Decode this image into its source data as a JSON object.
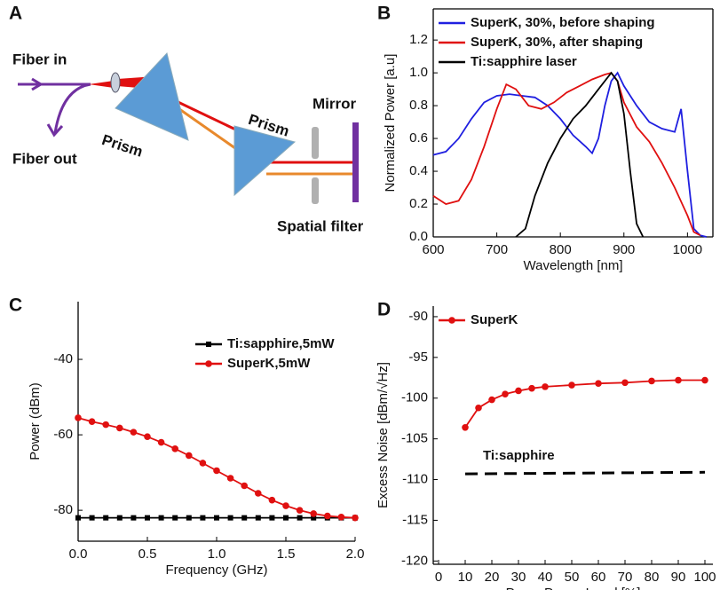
{
  "diagram": {
    "label": "A",
    "fiber_in": "Fiber in",
    "fiber_out": "Fiber out",
    "prism_1": "Prism",
    "prism_2": "Prism",
    "mirror": "Mirror",
    "spatial_filter": "Spatial filter"
  },
  "chart_data": [
    {
      "type": "line",
      "panel": "B",
      "x_label": "Wavelength [nm]",
      "y_label": "Normalized Power [a.u]",
      "xlim": [
        600,
        1040
      ],
      "xticks": [
        600,
        700,
        800,
        900,
        1000
      ],
      "ylim": [
        0,
        1.39
      ],
      "yticks": [
        {
          "value": 0,
          "label": "0.0"
        },
        0.2,
        0.4,
        0.6,
        0.8,
        {
          "value": 1,
          "label": "1.0"
        },
        1.2
      ],
      "frame": "box",
      "legend": "upper left",
      "series": [
        {
          "name": "SuperK, 30%, before shaping",
          "color": "#1f1fe0",
          "x": [
            600,
            620,
            640,
            660,
            680,
            700,
            720,
            740,
            760,
            780,
            800,
            820,
            840,
            850,
            860,
            870,
            880,
            890,
            900,
            920,
            940,
            960,
            980,
            990,
            1000,
            1010,
            1020,
            1030
          ],
          "values": [
            0.5,
            0.52,
            0.6,
            0.72,
            0.82,
            0.86,
            0.87,
            0.86,
            0.85,
            0.8,
            0.72,
            0.62,
            0.55,
            0.51,
            0.6,
            0.8,
            0.95,
            1.0,
            0.92,
            0.8,
            0.7,
            0.66,
            0.64,
            0.78,
            0.4,
            0.05,
            0.01,
            0
          ]
        },
        {
          "name": "SuperK, 30%, after shaping",
          "color": "#e01010",
          "x": [
            600,
            620,
            640,
            660,
            680,
            700,
            715,
            730,
            750,
            770,
            790,
            810,
            830,
            850,
            870,
            880,
            890,
            900,
            920,
            940,
            960,
            980,
            1000,
            1010,
            1020
          ],
          "values": [
            0.25,
            0.2,
            0.22,
            0.35,
            0.55,
            0.78,
            0.93,
            0.9,
            0.8,
            0.78,
            0.82,
            0.88,
            0.92,
            0.96,
            0.99,
            1.0,
            0.95,
            0.82,
            0.67,
            0.58,
            0.45,
            0.3,
            0.13,
            0.03,
            0.01
          ]
        },
        {
          "name": "Ti:sapphire laser",
          "color": "#000000",
          "x": [
            730,
            745,
            760,
            780,
            800,
            820,
            840,
            860,
            880,
            890,
            900,
            910,
            920,
            930
          ],
          "values": [
            0,
            0.05,
            0.25,
            0.45,
            0.6,
            0.72,
            0.8,
            0.9,
            1.0,
            0.95,
            0.75,
            0.4,
            0.08,
            0
          ]
        }
      ]
    },
    {
      "type": "line",
      "panel": "C",
      "x_label": "Frequency (GHz)",
      "y_label": "Power (dBm)",
      "xlim": [
        0,
        2
      ],
      "xticks": [
        {
          "value": 0,
          "label": "0.0"
        },
        0.5,
        {
          "value": 1,
          "label": "1.0"
        },
        1.5,
        {
          "value": 2,
          "label": "2.0"
        }
      ],
      "ylim": [
        -88.2,
        -24.7
      ],
      "yticks": [
        -40,
        -60,
        -80
      ],
      "frame": "axes",
      "legend": "upper right",
      "series": [
        {
          "name": "Ti:sapphire,5mW",
          "color": "#000000",
          "marker": "square",
          "x": [
            0,
            0.1,
            0.2,
            0.3,
            0.4,
            0.5,
            0.6,
            0.7,
            0.8,
            0.9,
            1.0,
            1.1,
            1.2,
            1.3,
            1.4,
            1.5,
            1.6,
            1.7,
            1.8,
            1.9,
            2.0
          ],
          "values": [
            -82,
            -82,
            -82,
            -82,
            -82,
            -82,
            -82,
            -82,
            -82,
            -82,
            -82,
            -82,
            -82,
            -82,
            -82,
            -82,
            -82,
            -82,
            -82,
            -82,
            -82
          ]
        },
        {
          "name": "SuperK,5mW",
          "color": "#e01010",
          "marker": "circle",
          "x": [
            0,
            0.1,
            0.2,
            0.3,
            0.4,
            0.5,
            0.6,
            0.7,
            0.8,
            0.9,
            1.0,
            1.1,
            1.2,
            1.3,
            1.4,
            1.5,
            1.6,
            1.7,
            1.8,
            1.9,
            2.0
          ],
          "values": [
            -55.5,
            -56.5,
            -57.3,
            -58.2,
            -59.3,
            -60.5,
            -62,
            -63.7,
            -65.5,
            -67.5,
            -69.5,
            -71.5,
            -73.5,
            -75.5,
            -77.3,
            -78.8,
            -80,
            -80.9,
            -81.5,
            -81.8,
            -82
          ]
        }
      ]
    },
    {
      "type": "line",
      "panel": "D",
      "x_label": "Pump Power Level [%]",
      "y_label": "Excess Noise [dBm/√Hz]",
      "xlim": [
        -2,
        103
      ],
      "xticks": [
        0,
        10,
        20,
        30,
        40,
        50,
        60,
        70,
        80,
        90,
        100
      ],
      "ylim": [
        -120.4,
        -88.7
      ],
      "yticks": [
        -90,
        -95,
        -100,
        -105,
        -110,
        -115,
        -120
      ],
      "frame": "axes",
      "legend": "upper left",
      "series": [
        {
          "name": "SuperK",
          "color": "#e01010",
          "marker": "circle",
          "x": [
            10,
            15,
            20,
            25,
            30,
            35,
            40,
            50,
            60,
            70,
            80,
            90,
            100
          ],
          "values": [
            -103.6,
            -101.2,
            -100.2,
            -99.5,
            -99.1,
            -98.8,
            -98.6,
            -98.4,
            -98.2,
            -98.1,
            -97.9,
            -97.8,
            -97.8
          ]
        },
        {
          "name": "Ti:sapphire",
          "color": "#000000",
          "dash": true,
          "in_legend": false,
          "x": [
            10,
            100
          ],
          "values": [
            -109.3,
            -109.1
          ]
        }
      ]
    }
  ]
}
